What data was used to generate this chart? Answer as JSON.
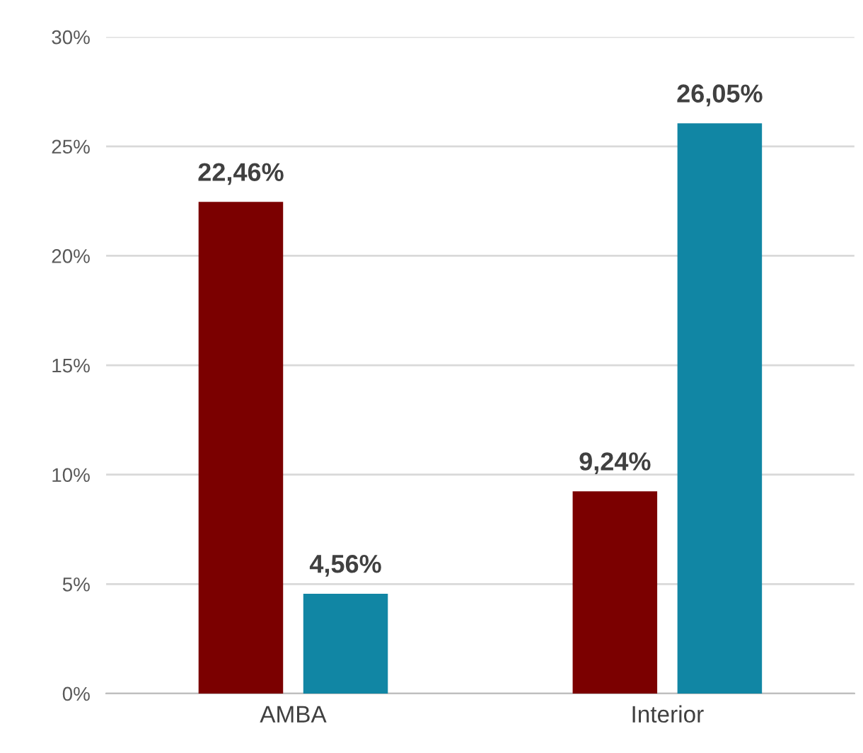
{
  "chart_data": {
    "type": "bar",
    "categories": [
      "AMBA",
      "Interior"
    ],
    "series": [
      {
        "color": "#7b0000",
        "values": [
          22.46,
          9.24
        ],
        "value_labels": [
          "22,46%",
          "9,24%"
        ]
      },
      {
        "color": "#1186a4",
        "values": [
          4.56,
          26.05
        ],
        "value_labels": [
          "4,56%",
          "26,05%"
        ]
      }
    ],
    "ylim": [
      0,
      30
    ],
    "yticks": [
      {
        "value": 0,
        "label": "0%"
      },
      {
        "value": 5,
        "label": "5%"
      },
      {
        "value": 10,
        "label": "10%"
      },
      {
        "value": 15,
        "label": "15%"
      },
      {
        "value": 20,
        "label": "20%"
      },
      {
        "value": 25,
        "label": "25%"
      },
      {
        "value": 30,
        "label": "30%"
      }
    ],
    "grid": "y"
  }
}
